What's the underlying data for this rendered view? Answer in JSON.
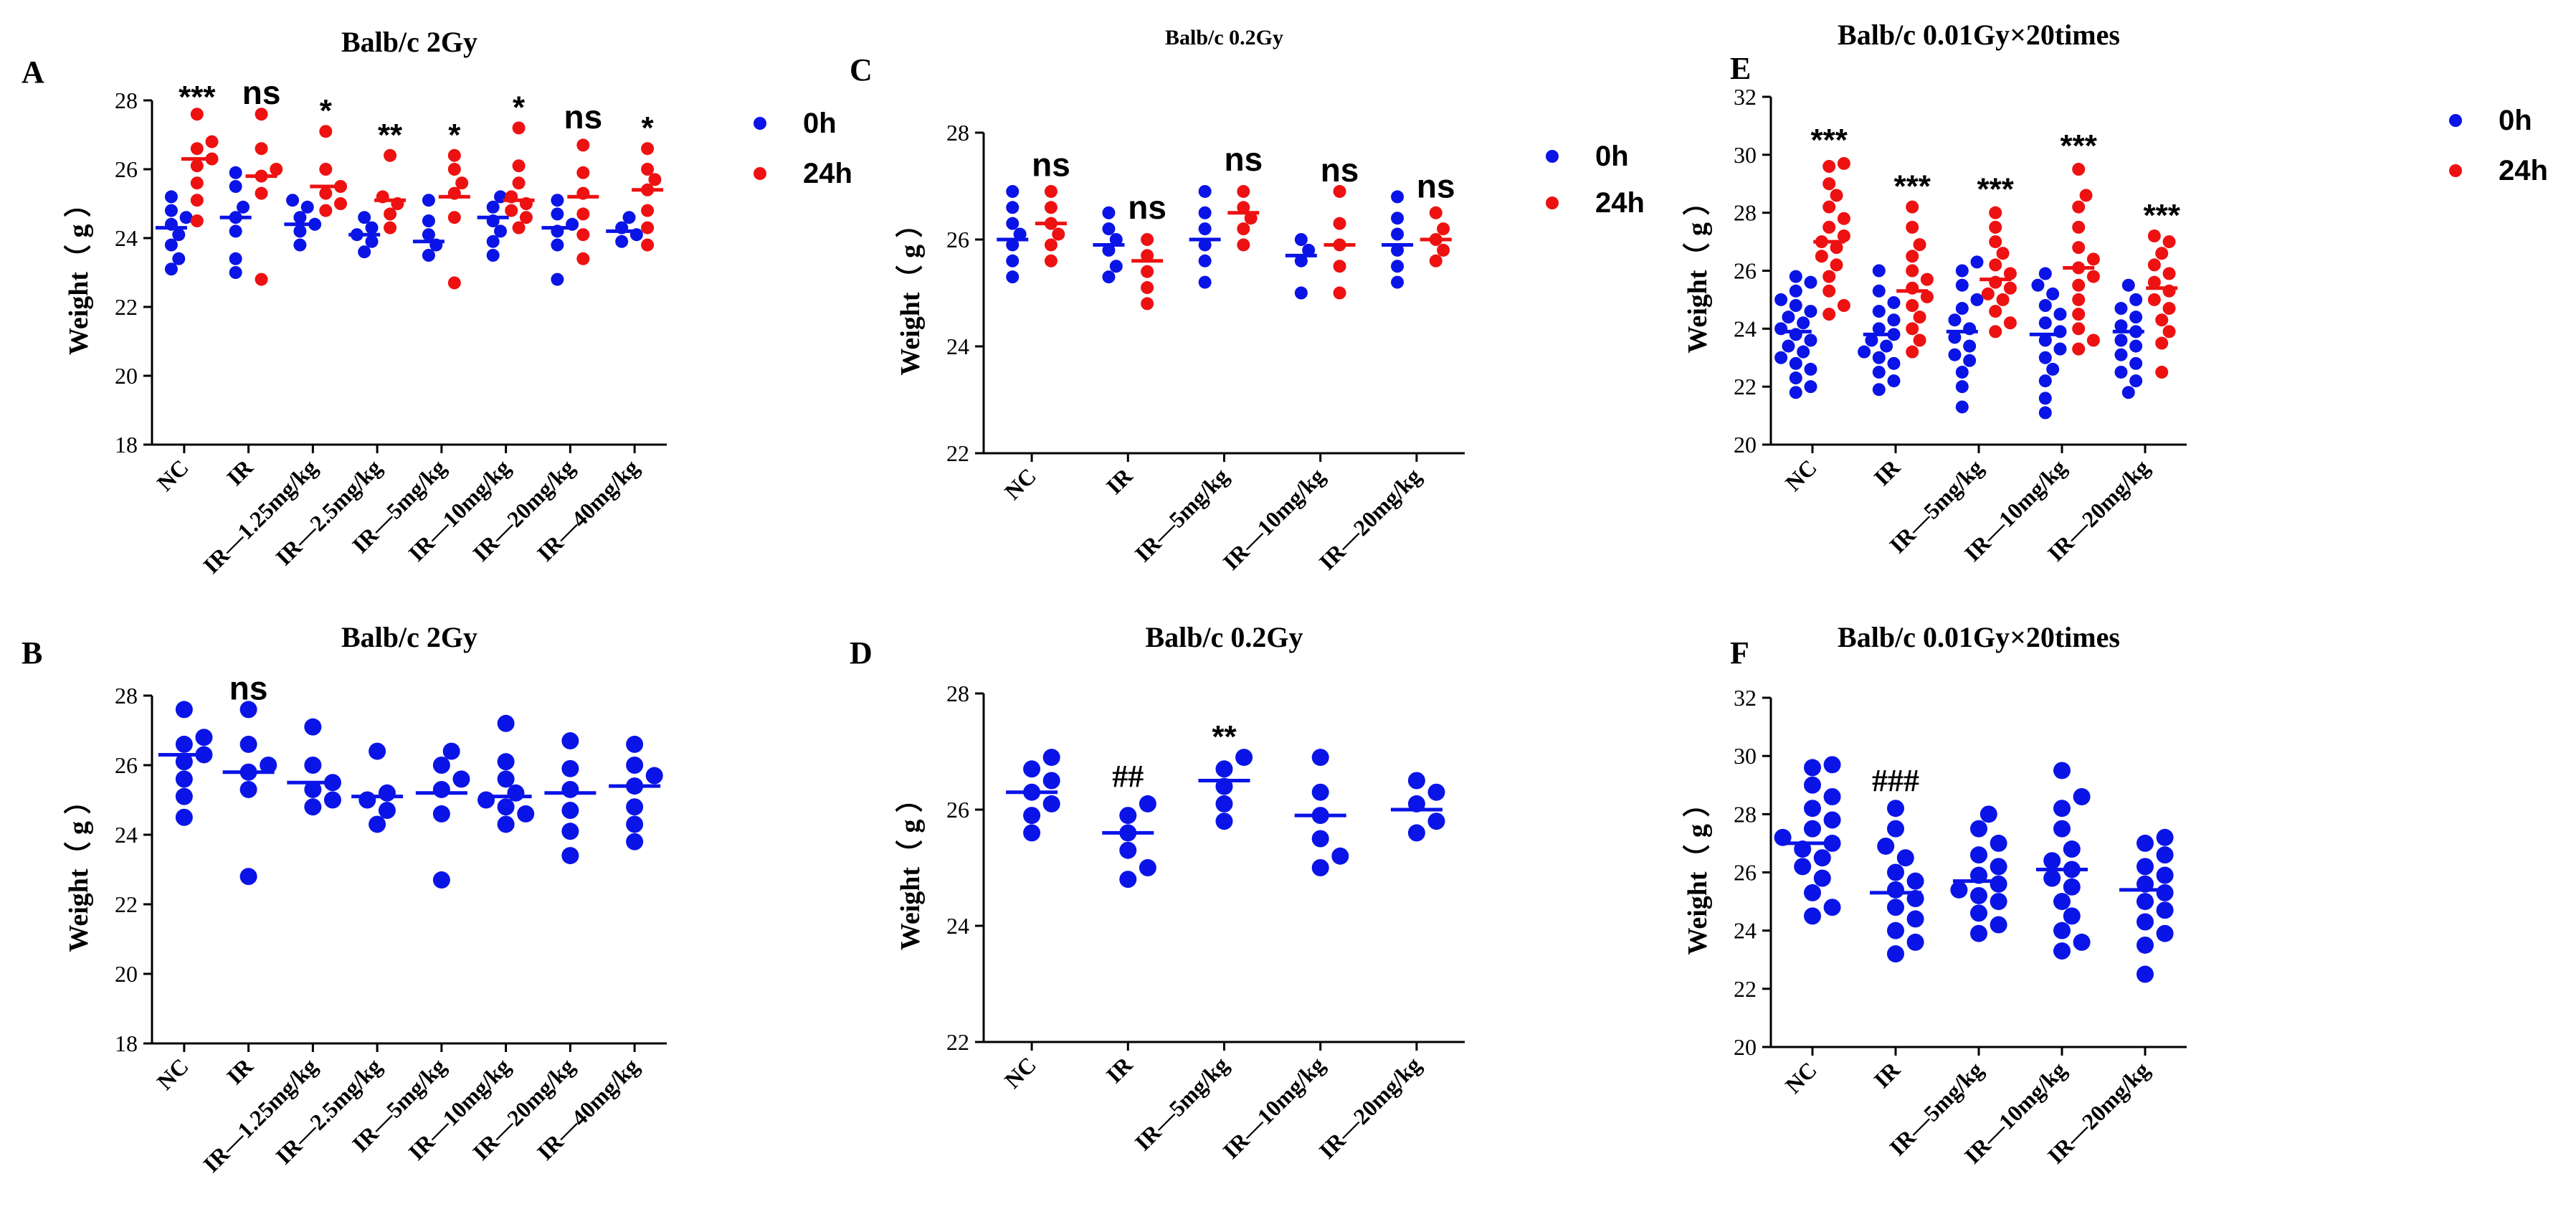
{
  "colors": {
    "h0": "#0a14e6",
    "h24": "#ee1111"
  },
  "legend": {
    "h0": "0h",
    "h24": "24h"
  },
  "chart_data": [
    {
      "panel": "A",
      "type": "scatter",
      "title": "Balb/c 2Gy",
      "ylabel": "Weight（  g  ）",
      "ylim": [
        18,
        28
      ],
      "yticks": [
        18,
        20,
        22,
        24,
        26,
        28
      ],
      "categories": [
        "NC",
        "IR",
        "IR—1.25mg/kg",
        "IR—2.5mg/kg",
        "IR—5mg/kg",
        "IR—10mg/kg",
        "IR—20mg/kg",
        "IR—40mg/kg"
      ],
      "legend": true,
      "series": [
        {
          "name": "0h",
          "color_key": "h0",
          "offset": -1,
          "points": [
            [
              25.2,
              24.8,
              24.6,
              24.4,
              24.1,
              23.8,
              23.4,
              23.1
            ],
            [
              25.9,
              25.5,
              24.9,
              24.6,
              24.2,
              23.4,
              23.0
            ],
            [
              25.1,
              24.9,
              24.6,
              24.4,
              24.2,
              23.8
            ],
            [
              24.6,
              24.3,
              24.1,
              23.9,
              23.6
            ],
            [
              25.1,
              24.5,
              24.1,
              23.8,
              23.5
            ],
            [
              25.2,
              24.9,
              24.5,
              24.2,
              23.9,
              23.5
            ],
            [
              25.1,
              24.7,
              24.4,
              24.2,
              23.8,
              22.8
            ],
            [
              24.6,
              24.3,
              24.1,
              23.9
            ]
          ],
          "means": [
            24.3,
            24.6,
            24.4,
            24.1,
            23.9,
            24.6,
            24.3,
            24.2
          ]
        },
        {
          "name": "24h",
          "color_key": "h24",
          "offset": 1,
          "points": [
            [
              27.6,
              26.8,
              26.6,
              26.3,
              26.1,
              25.6,
              25.1,
              24.5
            ],
            [
              27.6,
              26.6,
              26.0,
              25.8,
              25.3,
              22.8
            ],
            [
              27.1,
              26.0,
              25.5,
              25.3,
              25.0,
              24.8
            ],
            [
              26.4,
              25.2,
              25.0,
              24.7,
              24.3
            ],
            [
              26.4,
              26.0,
              25.6,
              25.3,
              24.6,
              22.7
            ],
            [
              27.2,
              26.1,
              25.6,
              25.2,
              25.0,
              24.8,
              24.6,
              24.3
            ],
            [
              26.7,
              25.9,
              25.3,
              24.7,
              24.1,
              23.4
            ],
            [
              26.6,
              26.0,
              25.7,
              25.4,
              24.8,
              24.3,
              23.8
            ]
          ],
          "means": [
            26.3,
            25.8,
            25.5,
            25.1,
            25.2,
            25.1,
            25.2,
            25.4
          ]
        }
      ],
      "annotations": [
        {
          "cat": 0,
          "text": "***",
          "y": 27.5,
          "style": "star"
        },
        {
          "cat": 1,
          "text": "ns",
          "y": 27.6,
          "style": "ns"
        },
        {
          "cat": 2,
          "text": "*",
          "y": 27.1,
          "style": "star"
        },
        {
          "cat": 3,
          "text": "**",
          "y": 26.4,
          "style": "star"
        },
        {
          "cat": 4,
          "text": "*",
          "y": 26.4,
          "style": "star"
        },
        {
          "cat": 5,
          "text": "*",
          "y": 27.2,
          "style": "star"
        },
        {
          "cat": 6,
          "text": "ns",
          "y": 26.9,
          "style": "ns"
        },
        {
          "cat": 7,
          "text": "*",
          "y": 26.6,
          "style": "star"
        }
      ]
    },
    {
      "panel": "B",
      "type": "scatter",
      "title": "Balb/c 2Gy",
      "ylabel": "Weight（  g  ）",
      "ylim": [
        18,
        28
      ],
      "yticks": [
        18,
        20,
        22,
        24,
        26,
        28
      ],
      "categories": [
        "NC",
        "IR",
        "IR—1.25mg/kg",
        "IR—2.5mg/kg",
        "IR—5mg/kg",
        "IR—10mg/kg",
        "IR—20mg/kg",
        "IR—40mg/kg"
      ],
      "legend": false,
      "series": [
        {
          "name": "",
          "color_key": "h0",
          "offset": 0,
          "points": [
            [
              27.6,
              26.8,
              26.6,
              26.3,
              26.1,
              25.6,
              25.1,
              24.5
            ],
            [
              27.6,
              26.6,
              26.0,
              25.8,
              25.3,
              22.8
            ],
            [
              27.1,
              26.0,
              25.5,
              25.3,
              25.0,
              24.8
            ],
            [
              26.4,
              25.2,
              25.0,
              24.7,
              24.3
            ],
            [
              26.4,
              26.0,
              25.6,
              25.3,
              24.6,
              22.7
            ],
            [
              27.2,
              26.1,
              25.6,
              25.2,
              25.0,
              24.8,
              24.6,
              24.3
            ],
            [
              26.7,
              25.9,
              25.3,
              24.7,
              24.1,
              23.4
            ],
            [
              26.6,
              26.0,
              25.7,
              25.4,
              24.8,
              24.3,
              23.8
            ]
          ],
          "means": [
            26.3,
            25.8,
            25.5,
            25.1,
            25.2,
            25.1,
            25.2,
            25.4
          ]
        }
      ],
      "annotations": [
        {
          "cat": 1,
          "text": "ns",
          "y": 27.6,
          "style": "ns"
        }
      ]
    },
    {
      "panel": "C",
      "type": "scatter",
      "title": "Balb/c 0.2Gy",
      "ylabel": "Weight（  g  ）",
      "ylim": [
        22,
        28
      ],
      "yticks": [
        22,
        24,
        26,
        28
      ],
      "categories": [
        "NC",
        "IR",
        "IR—5mg/kg",
        "IR—10mg/kg",
        "IR—20mg/kg"
      ],
      "legend": true,
      "series": [
        {
          "name": "0h",
          "color_key": "h0",
          "offset": -1,
          "points": [
            [
              26.9,
              26.6,
              26.3,
              26.1,
              25.9,
              25.6,
              25.3
            ],
            [
              26.5,
              26.2,
              26.0,
              25.8,
              25.5,
              25.3
            ],
            [
              26.9,
              26.5,
              26.2,
              25.9,
              25.6,
              25.2
            ],
            [
              26.0,
              25.8,
              25.6,
              25.0
            ],
            [
              26.8,
              26.4,
              26.1,
              25.8,
              25.5,
              25.2
            ]
          ],
          "means": [
            26.0,
            25.9,
            26.0,
            25.7,
            25.9
          ]
        },
        {
          "name": "24h",
          "color_key": "h24",
          "offset": 1,
          "points": [
            [
              26.9,
              26.6,
              26.3,
              26.1,
              25.9,
              25.6
            ],
            [
              26.0,
              25.7,
              25.4,
              25.1,
              24.8
            ],
            [
              26.9,
              26.6,
              26.4,
              26.2,
              25.9
            ],
            [
              26.9,
              26.3,
              25.9,
              25.5,
              25.0
            ],
            [
              26.5,
              26.2,
              26.0,
              25.8,
              25.6
            ]
          ],
          "means": [
            26.3,
            25.6,
            26.5,
            25.9,
            26.0
          ]
        }
      ],
      "annotations": [
        {
          "cat": 0,
          "text": "ns",
          "y": 27.0,
          "style": "ns"
        },
        {
          "cat": 1,
          "text": "ns",
          "y": 26.2,
          "style": "ns"
        },
        {
          "cat": 2,
          "text": "ns",
          "y": 27.1,
          "style": "ns"
        },
        {
          "cat": 3,
          "text": "ns",
          "y": 26.9,
          "style": "ns"
        },
        {
          "cat": 4,
          "text": "ns",
          "y": 26.6,
          "style": "ns"
        }
      ]
    },
    {
      "panel": "D",
      "type": "scatter",
      "title": "Balb/c 0.2Gy",
      "ylabel": "Weight（  g  ）",
      "ylim": [
        22,
        28
      ],
      "yticks": [
        22,
        24,
        26,
        28
      ],
      "categories": [
        "NC",
        "IR",
        "IR—5mg/kg",
        "IR—10mg/kg",
        "IR—20mg/kg"
      ],
      "legend": false,
      "series": [
        {
          "name": "",
          "color_key": "h0",
          "offset": 0,
          "points": [
            [
              26.9,
              26.7,
              26.5,
              26.3,
              26.1,
              25.9,
              25.6
            ],
            [
              26.1,
              25.9,
              25.6,
              25.3,
              25.0,
              24.8
            ],
            [
              26.9,
              26.7,
              26.4,
              26.1,
              25.8
            ],
            [
              26.9,
              26.3,
              25.9,
              25.5,
              25.2,
              25.0
            ],
            [
              26.5,
              26.3,
              26.1,
              25.8,
              25.6
            ]
          ],
          "means": [
            26.3,
            25.6,
            26.5,
            25.9,
            26.0
          ]
        }
      ],
      "annotations": [
        {
          "cat": 1,
          "text": "##",
          "y": 26.2,
          "style": "hash"
        },
        {
          "cat": 2,
          "text": "**",
          "y": 26.9,
          "style": "star"
        }
      ]
    },
    {
      "panel": "E",
      "type": "scatter",
      "title": "Balb/c 0.01Gy×20times",
      "ylabel": "Weight（  g  ）",
      "ylim": [
        20,
        32
      ],
      "yticks": [
        20,
        22,
        24,
        26,
        28,
        30,
        32
      ],
      "categories": [
        "NC",
        "IR",
        "IR—5mg/kg",
        "IR—10mg/kg",
        "IR—20mg/kg"
      ],
      "legend": true,
      "series": [
        {
          "name": "0h",
          "color_key": "h0",
          "offset": -1,
          "points": [
            [
              25.8,
              25.6,
              25.3,
              25.0,
              24.8,
              24.6,
              24.4,
              24.2,
              24.0,
              23.8,
              23.6,
              23.4,
              23.2,
              23.0,
              22.8,
              22.6,
              22.3,
              22.0,
              21.8
            ],
            [
              26.0,
              25.3,
              24.9,
              24.6,
              24.3,
              24.0,
              23.8,
              23.6,
              23.4,
              23.2,
              23.0,
              22.8,
              22.5,
              22.2,
              21.9
            ],
            [
              26.3,
              26.0,
              25.5,
              25.0,
              24.7,
              24.3,
              24.0,
              23.7,
              23.4,
              23.1,
              22.9,
              22.5,
              22.0,
              21.3
            ],
            [
              25.9,
              25.5,
              25.2,
              24.8,
              24.5,
              24.2,
              23.9,
              23.6,
              23.3,
              23.0,
              22.6,
              22.2,
              21.6,
              21.1
            ],
            [
              25.5,
              25.0,
              24.7,
              24.4,
              24.1,
              23.9,
              23.6,
              23.4,
              23.1,
              22.8,
              22.5,
              22.2,
              21.8
            ]
          ],
          "means": [
            23.9,
            23.8,
            23.9,
            23.8,
            23.9
          ]
        },
        {
          "name": "24h",
          "color_key": "h24",
          "offset": 1,
          "points": [
            [
              29.7,
              29.6,
              29.0,
              28.6,
              28.2,
              27.8,
              27.5,
              27.2,
              27.0,
              26.8,
              26.5,
              26.2,
              25.8,
              25.3,
              24.8,
              24.5
            ],
            [
              28.2,
              27.5,
              26.9,
              26.5,
              26.0,
              25.7,
              25.4,
              25.1,
              24.8,
              24.4,
              24.0,
              23.6,
              23.2
            ],
            [
              28.0,
              27.5,
              27.0,
              26.6,
              26.2,
              25.9,
              25.6,
              25.4,
              25.2,
              25.0,
              24.6,
              24.2,
              23.9
            ],
            [
              29.5,
              28.6,
              28.2,
              27.5,
              26.8,
              26.4,
              26.1,
              25.8,
              25.5,
              25.0,
              24.5,
              24.0,
              23.6,
              23.3
            ],
            [
              27.2,
              27.0,
              26.6,
              26.2,
              25.9,
              25.6,
              25.3,
              25.0,
              24.7,
              24.3,
              23.9,
              23.5,
              22.5
            ]
          ],
          "means": [
            27.0,
            25.3,
            25.7,
            26.1,
            25.4
          ]
        }
      ],
      "annotations": [
        {
          "cat": 0,
          "text": "***",
          "y": 29.8,
          "style": "star"
        },
        {
          "cat": 1,
          "text": "***",
          "y": 28.2,
          "style": "star"
        },
        {
          "cat": 2,
          "text": "***",
          "y": 28.1,
          "style": "star"
        },
        {
          "cat": 3,
          "text": "***",
          "y": 29.6,
          "style": "star"
        },
        {
          "cat": 4,
          "text": "***",
          "y": 27.2,
          "style": "star"
        }
      ]
    },
    {
      "panel": "F",
      "type": "scatter",
      "title": "Balb/c 0.01Gy×20times",
      "ylabel": "Weight（  g  ）",
      "ylim": [
        20,
        32
      ],
      "yticks": [
        20,
        22,
        24,
        26,
        28,
        30,
        32
      ],
      "categories": [
        "NC",
        "IR",
        "IR—5mg/kg",
        "IR—10mg/kg",
        "IR—20mg/kg"
      ],
      "legend": false,
      "series": [
        {
          "name": "",
          "color_key": "h0",
          "offset": 0,
          "points": [
            [
              29.7,
              29.6,
              29.0,
              28.6,
              28.2,
              27.8,
              27.5,
              27.2,
              27.0,
              26.8,
              26.5,
              26.2,
              25.8,
              25.3,
              24.8,
              24.5
            ],
            [
              28.2,
              27.5,
              26.9,
              26.5,
              26.0,
              25.7,
              25.4,
              25.1,
              24.8,
              24.4,
              24.0,
              23.6,
              23.2
            ],
            [
              28.0,
              27.5,
              27.0,
              26.6,
              26.2,
              25.9,
              25.6,
              25.4,
              25.2,
              25.0,
              24.6,
              24.2,
              23.9
            ],
            [
              29.5,
              28.6,
              28.2,
              27.5,
              26.8,
              26.4,
              26.1,
              25.8,
              25.5,
              25.0,
              24.5,
              24.0,
              23.6,
              23.3
            ],
            [
              27.2,
              27.0,
              26.6,
              26.2,
              25.9,
              25.6,
              25.3,
              25.0,
              24.7,
              24.3,
              23.9,
              23.5,
              22.5
            ]
          ],
          "means": [
            27.0,
            25.3,
            25.7,
            26.1,
            25.4
          ]
        }
      ],
      "annotations": [
        {
          "cat": 1,
          "text": "###",
          "y": 28.4,
          "style": "hash"
        }
      ]
    }
  ]
}
